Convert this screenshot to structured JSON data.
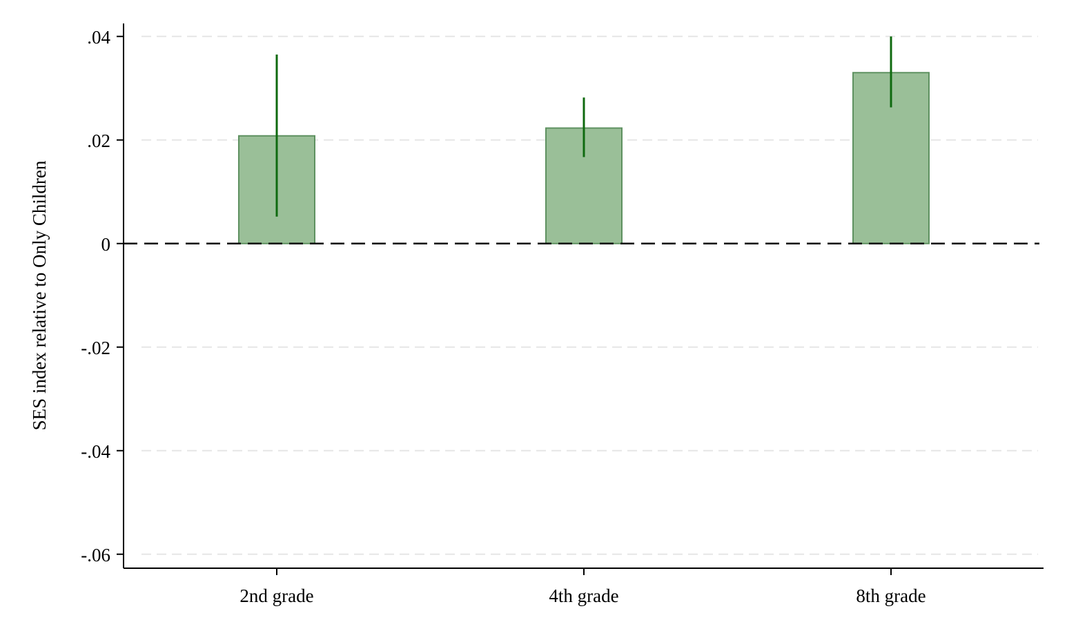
{
  "chart_data": {
    "type": "bar",
    "title": "",
    "xlabel": "",
    "ylabel": "SES index relative to Only Children",
    "categories": [
      "2nd grade",
      "4th grade",
      "8th grade"
    ],
    "values": [
      0.0208,
      0.0223,
      0.033
    ],
    "ci_low": [
      0.0052,
      0.0167,
      0.0263
    ],
    "ci_high": [
      0.0365,
      0.0282,
      0.04
    ],
    "ylim": [
      -0.0627,
      0.0425
    ],
    "yticks": [
      {
        "value": 0.04,
        "label": ".04"
      },
      {
        "value": 0.02,
        "label": ".02"
      },
      {
        "value": 0,
        "label": "0"
      },
      {
        "value": -0.02,
        "label": "-.02"
      },
      {
        "value": -0.04,
        "label": "-.04"
      },
      {
        "value": -0.06,
        "label": "-.06"
      }
    ],
    "reference_line": {
      "y": 0,
      "style": "dashed"
    },
    "grid": true,
    "legend": "none",
    "colors": {
      "bar_fill": "#9abf98",
      "bar_stroke": "#5e9160",
      "error_bar": "#0f6a0f",
      "grid": "#e6e6e6",
      "axis": "#000000"
    }
  }
}
